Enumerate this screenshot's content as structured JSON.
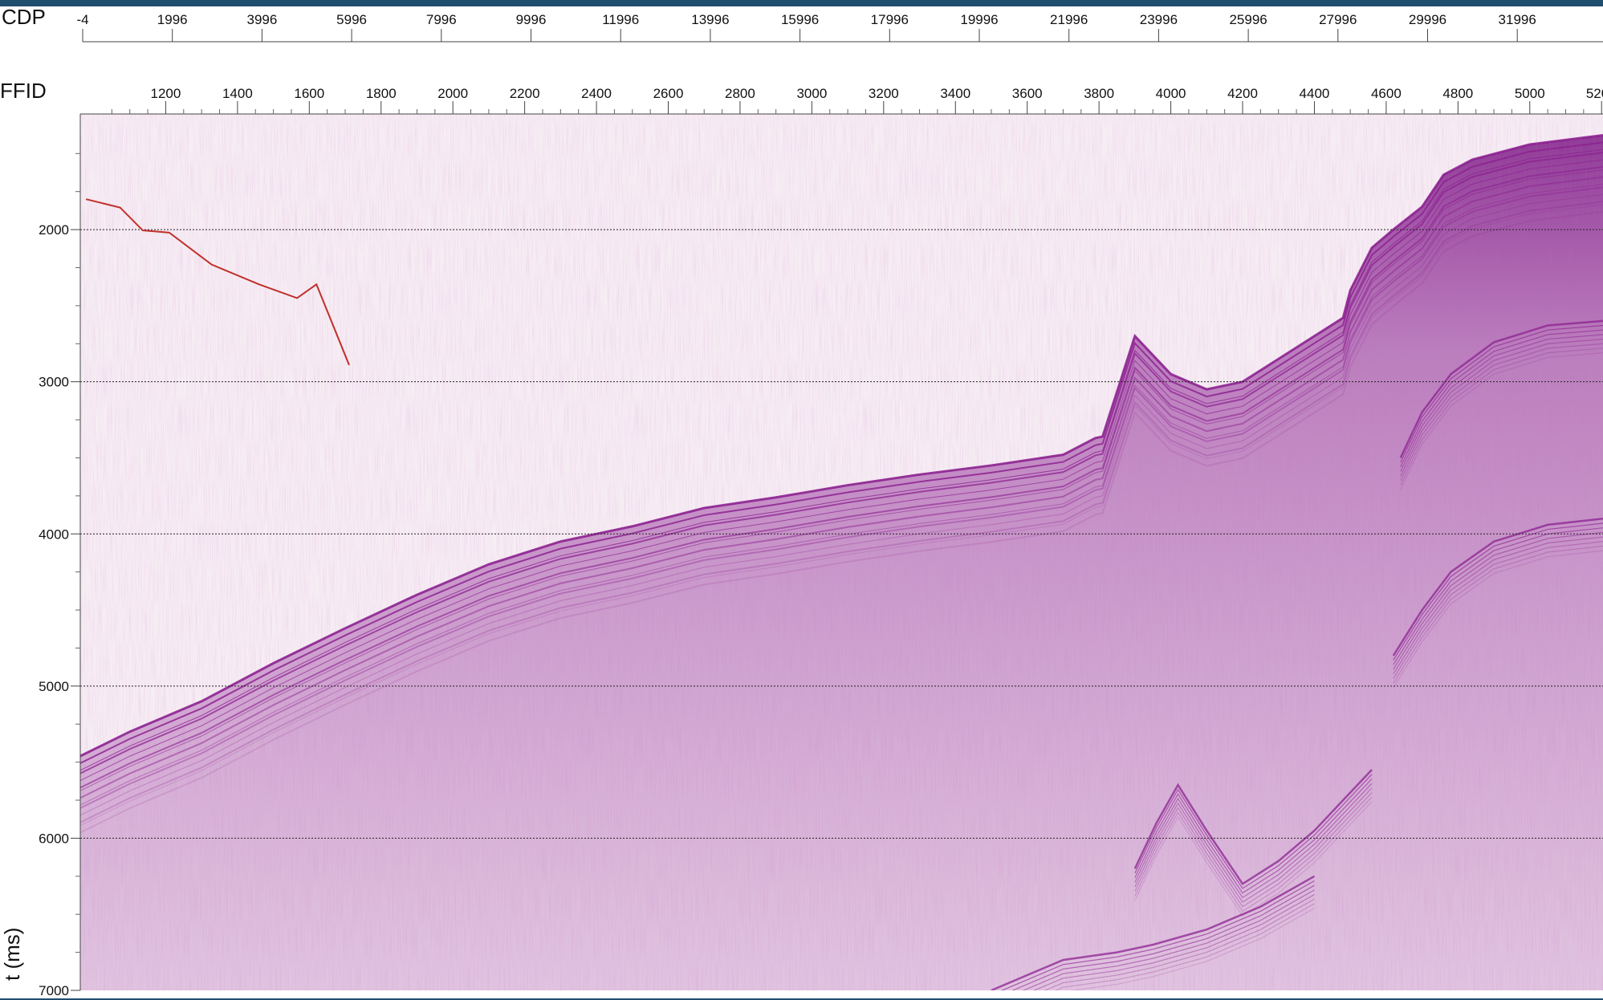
{
  "window": {
    "border_color": "#1f4e6e"
  },
  "chart_data": {
    "type": "seismic-section",
    "top_axis": {
      "label": "CDP",
      "ticks": [
        "-4",
        "1996",
        "3996",
        "5996",
        "7996",
        "9996",
        "11996",
        "13996",
        "15996",
        "17996",
        "19996",
        "21996",
        "23996",
        "25996",
        "27996",
        "29996",
        "31996"
      ]
    },
    "second_axis": {
      "label": "FFID",
      "ticks": [
        "1200",
        "1400",
        "1600",
        "1800",
        "2000",
        "2200",
        "2400",
        "2600",
        "2800",
        "3000",
        "3200",
        "3400",
        "3600",
        "3800",
        "4000",
        "4200",
        "4400",
        "4600",
        "4800",
        "5000",
        "520"
      ]
    },
    "y_axis": {
      "label": "t (ms)",
      "ticks": [
        "2000",
        "3000",
        "4000",
        "5000",
        "6000",
        "7000"
      ],
      "gridlines": [
        2000,
        3000,
        4000,
        5000,
        6000
      ],
      "range": [
        1240,
        7000
      ]
    },
    "ffid_range": [
      962,
      5204
    ],
    "colors": {
      "background": "#f7eef4",
      "reflector": "#8a1f8f",
      "overlay_line": "#c0302a",
      "grid": "#222222"
    },
    "overlay_line": {
      "x": [
        978,
        1073,
        1136,
        1210,
        1328,
        1460,
        1566,
        1620,
        1711
      ],
      "y": [
        1800,
        1855,
        2005,
        2020,
        2230,
        2360,
        2450,
        2360,
        2890
      ]
    },
    "seafloor_horizon": {
      "x": [
        962,
        1100,
        1300,
        1500,
        1700,
        1900,
        2100,
        2300,
        2500,
        2700,
        2900,
        3100,
        3300,
        3500,
        3700,
        3790,
        3810,
        3900,
        4000,
        4100,
        4200,
        4300,
        4400,
        4480,
        4500,
        4560,
        4620,
        4700,
        4760,
        4840,
        5000,
        5204
      ],
      "y": [
        5460,
        5300,
        5100,
        4850,
        4620,
        4400,
        4200,
        4050,
        3950,
        3830,
        3760,
        3680,
        3610,
        3550,
        3480,
        3370,
        3360,
        2700,
        2950,
        3050,
        3000,
        2850,
        2700,
        2580,
        2400,
        2120,
        2000,
        1850,
        1640,
        1540,
        1440,
        1380
      ]
    },
    "deep_horizons": [
      {
        "x": [
          4640,
          4700,
          4780,
          4900,
          5050,
          5204
        ],
        "y": [
          3500,
          3200,
          2950,
          2740,
          2630,
          2600
        ]
      },
      {
        "x": [
          4620,
          4700,
          4780,
          4900,
          5050,
          5204
        ],
        "y": [
          4800,
          4500,
          4250,
          4050,
          3940,
          3900
        ]
      },
      {
        "x": [
          3900,
          3960,
          4020,
          4100,
          4200,
          4300,
          4400,
          4500,
          4560
        ],
        "y": [
          6200,
          5900,
          5650,
          5950,
          6300,
          6150,
          5950,
          5700,
          5550
        ]
      },
      {
        "x": [
          3500,
          3700,
          3850,
          3950,
          4100,
          4250,
          4400
        ],
        "y": [
          7000,
          6800,
          6750,
          6700,
          6600,
          6450,
          6250
        ]
      }
    ]
  }
}
